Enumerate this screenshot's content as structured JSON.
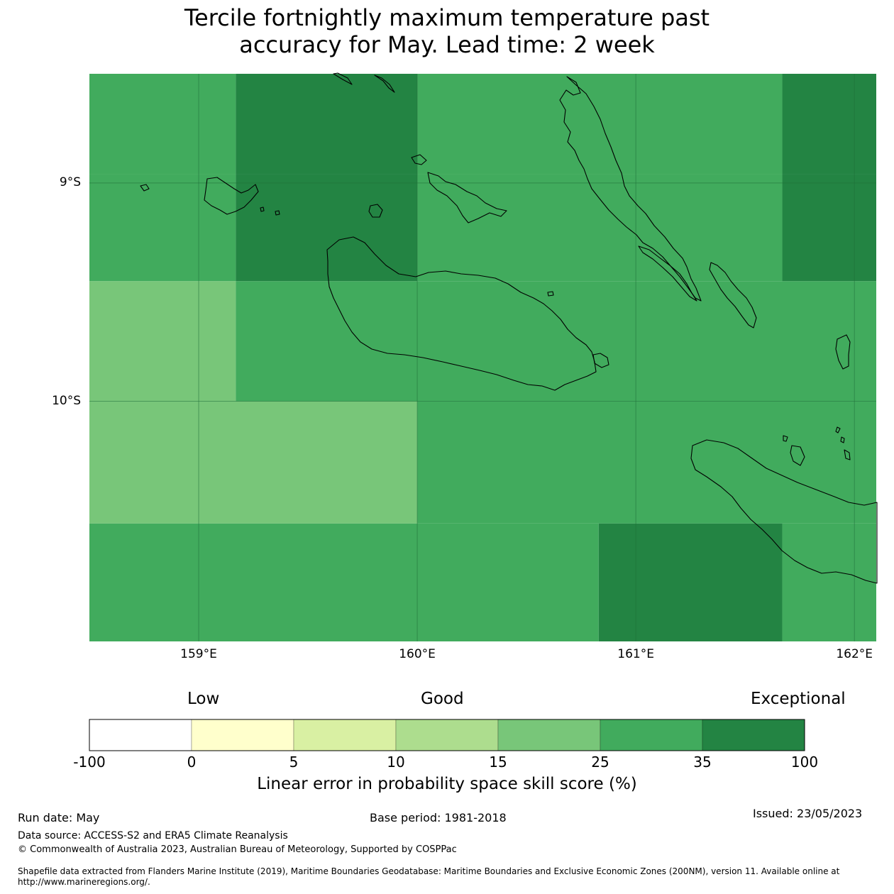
{
  "title": {
    "line1": "Tercile fortnightly maximum temperature past",
    "line2": "accuracy for May. Lead time: 2 week"
  },
  "map": {
    "lon_range": [
      158.5,
      162.1
    ],
    "lat_range": [
      -11.1,
      -8.5
    ],
    "lon_ticks": [
      {
        "value": 159,
        "label": "159°E"
      },
      {
        "value": 160,
        "label": "160°E"
      },
      {
        "value": 161,
        "label": "161°E"
      },
      {
        "value": 162,
        "label": "162°E"
      }
    ],
    "lat_ticks": [
      {
        "value": -9,
        "label": "9°S"
      },
      {
        "value": -10,
        "label": "10°S"
      }
    ],
    "gridlines": true,
    "coastlines": true,
    "score_cells": [
      {
        "lon": [
          158.5,
          159.17
        ],
        "lat": [
          -8.5,
          -8.96
        ],
        "class": "25-35"
      },
      {
        "lon": [
          159.17,
          160.0
        ],
        "lat": [
          -8.5,
          -8.96
        ],
        "class": "35-100"
      },
      {
        "lon": [
          160.0,
          161.67
        ],
        "lat": [
          -8.5,
          -8.96
        ],
        "class": "25-35"
      },
      {
        "lon": [
          161.67,
          162.1
        ],
        "lat": [
          -8.5,
          -8.96
        ],
        "class": "35-100"
      },
      {
        "lon": [
          158.5,
          159.17
        ],
        "lat": [
          -8.96,
          -9.45
        ],
        "class": "25-35"
      },
      {
        "lon": [
          159.17,
          160.0
        ],
        "lat": [
          -8.96,
          -9.45
        ],
        "class": "35-100"
      },
      {
        "lon": [
          160.0,
          161.67
        ],
        "lat": [
          -8.96,
          -9.45
        ],
        "class": "25-35"
      },
      {
        "lon": [
          161.67,
          162.1
        ],
        "lat": [
          -8.96,
          -9.45
        ],
        "class": "35-100"
      },
      {
        "lon": [
          158.5,
          159.17
        ],
        "lat": [
          -9.45,
          -10.0
        ],
        "class": "15-25"
      },
      {
        "lon": [
          159.17,
          162.1
        ],
        "lat": [
          -9.45,
          -10.0
        ],
        "class": "25-35"
      },
      {
        "lon": [
          158.5,
          160.0
        ],
        "lat": [
          -10.0,
          -10.56
        ],
        "class": "15-25"
      },
      {
        "lon": [
          160.0,
          162.1
        ],
        "lat": [
          -10.0,
          -10.56
        ],
        "class": "25-35"
      },
      {
        "lon": [
          158.5,
          160.83
        ],
        "lat": [
          -10.56,
          -11.1
        ],
        "class": "25-35"
      },
      {
        "lon": [
          160.83,
          161.67
        ],
        "lat": [
          -10.56,
          -11.1
        ],
        "class": "35-100"
      },
      {
        "lon": [
          161.67,
          162.1
        ],
        "lat": [
          -10.56,
          -11.1
        ],
        "class": "25-35"
      }
    ]
  },
  "legend": {
    "categories": {
      "low": "Low",
      "good": "Good",
      "exceptional": "Exceptional"
    },
    "bins": [
      {
        "range": "-100-0",
        "color": "#ffffff"
      },
      {
        "range": "0-5",
        "color": "#ffffcc"
      },
      {
        "range": "5-10",
        "color": "#d9f0a3"
      },
      {
        "range": "10-15",
        "color": "#addd8e"
      },
      {
        "range": "15-25",
        "color": "#78c679"
      },
      {
        "range": "25-35",
        "color": "#41ab5d"
      },
      {
        "range": "35-100",
        "color": "#238443"
      }
    ],
    "boundary_labels": [
      "-100",
      "0",
      "5",
      "10",
      "15",
      "25",
      "35",
      "100"
    ],
    "title": "Linear error in probability space skill score (%)"
  },
  "footer": {
    "run_date": "Run date: May",
    "base_period": "Base period: 1981-2018",
    "issued": "Issued: 23/05/2023",
    "data_source": "Data source: ACCESS-S2 and ERA5 Climate Reanalysis",
    "copyright": "© Commonwealth of Australia 2023, Australian Bureau of Meteorology, Supported by COSPPac",
    "shapefile": "Shapefile data extracted from Flanders Marine Institute (2019), Maritime Boundaries Geodatabase: Maritime Boundaries and Exclusive Economic Zones (200NM), version 11. Available online at http://www.marineregions.org/."
  }
}
